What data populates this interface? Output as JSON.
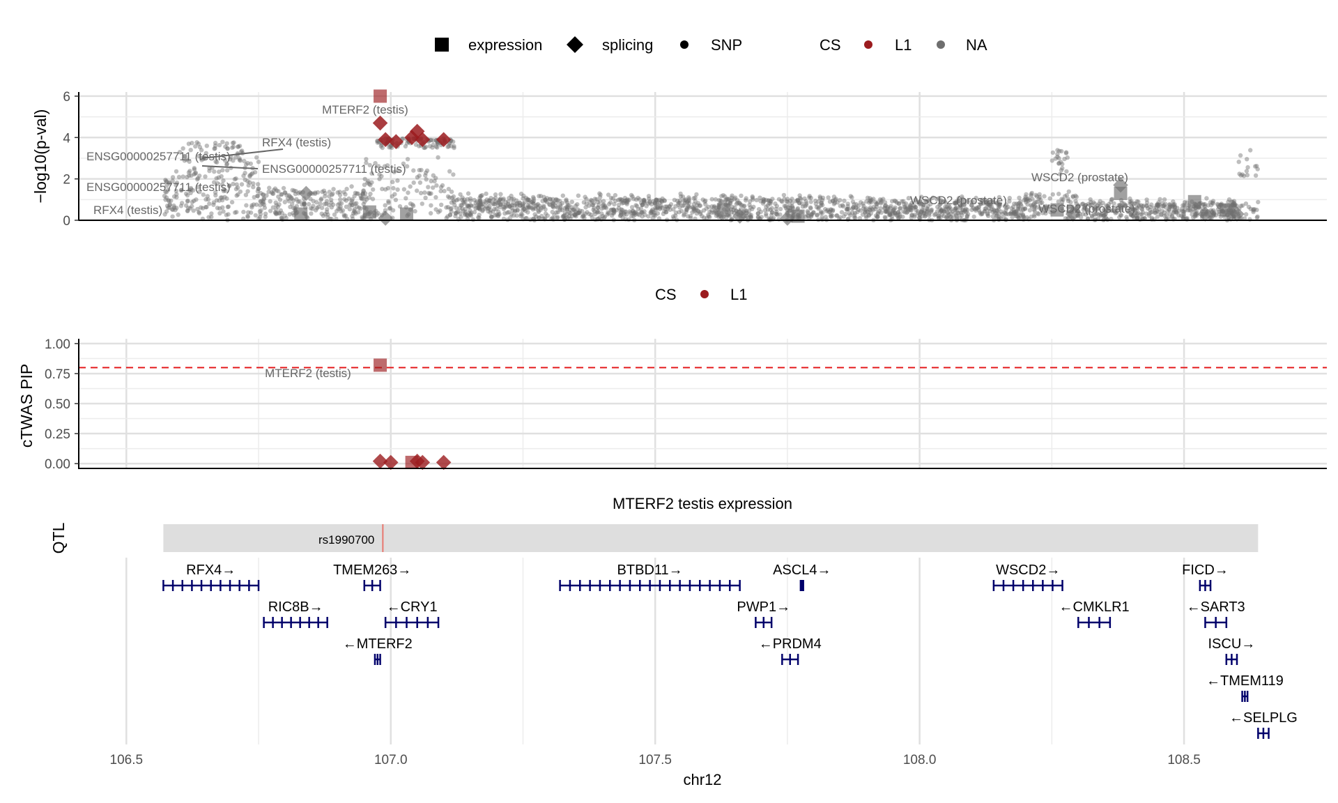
{
  "legend_top": {
    "shape_items": [
      {
        "shape": "square",
        "label": "expression"
      },
      {
        "shape": "diamond",
        "label": "splicing"
      },
      {
        "shape": "circle",
        "label": "SNP"
      }
    ],
    "cs_title": "CS",
    "cs_items": [
      {
        "label": "L1",
        "color": "#9b1b1e"
      },
      {
        "label": "NA",
        "color": "#6e6e6e"
      }
    ]
  },
  "legend_middle": {
    "cs_title": "CS",
    "cs_items": [
      {
        "label": "L1",
        "color": "#9b1b1e"
      }
    ]
  },
  "colors": {
    "cs_l1": "#9b1b1e",
    "cs_na": "#6e6e6e",
    "threshold": "#e41a1c",
    "gene": "#00006b",
    "qtl_band": "#dedede",
    "qtl_marker": "#e8776e"
  },
  "chart_data": [
    {
      "type": "scatter",
      "panel": "association",
      "ylabel": "−log10(p-val)",
      "ylim": [
        0,
        6.2
      ],
      "yticks": [
        0,
        2,
        4,
        6
      ],
      "xlim": [
        106.41,
        108.77
      ],
      "grid": true,
      "snp_cloud": {
        "x_range": [
          106.57,
          108.64
        ],
        "approx_y_range": [
          0,
          3.9
        ],
        "note": "several thousand SNPs, mostly below 2.5"
      },
      "gene_points": [
        {
          "x": 106.98,
          "y": 6.0,
          "shape": "square",
          "cs": "L1",
          "label": "MTERF2 (testis)"
        },
        {
          "x": 106.98,
          "y": 4.7,
          "shape": "diamond",
          "cs": "L1"
        },
        {
          "x": 106.99,
          "y": 3.9,
          "shape": "diamond",
          "cs": "L1"
        },
        {
          "x": 107.01,
          "y": 3.8,
          "shape": "diamond",
          "cs": "L1"
        },
        {
          "x": 107.04,
          "y": 4.0,
          "shape": "diamond",
          "cs": "L1"
        },
        {
          "x": 107.05,
          "y": 4.3,
          "shape": "diamond",
          "cs": "L1"
        },
        {
          "x": 107.06,
          "y": 3.9,
          "shape": "diamond",
          "cs": "L1"
        },
        {
          "x": 107.1,
          "y": 3.9,
          "shape": "diamond",
          "cs": "L1"
        },
        {
          "x": 106.84,
          "y": 1.3,
          "shape": "diamond",
          "cs": "NA"
        },
        {
          "x": 106.83,
          "y": 0.3,
          "shape": "square",
          "cs": "NA"
        },
        {
          "x": 106.96,
          "y": 0.4,
          "shape": "square",
          "cs": "NA"
        },
        {
          "x": 106.99,
          "y": 0.1,
          "shape": "diamond",
          "cs": "NA"
        },
        {
          "x": 107.03,
          "y": 0.3,
          "shape": "square",
          "cs": "NA"
        },
        {
          "x": 107.63,
          "y": 0.5,
          "shape": "square",
          "cs": "NA"
        },
        {
          "x": 107.66,
          "y": 0.2,
          "shape": "diamond",
          "cs": "NA"
        },
        {
          "x": 107.75,
          "y": 0.1,
          "shape": "diamond",
          "cs": "NA"
        },
        {
          "x": 107.77,
          "y": 0.2,
          "shape": "square",
          "cs": "NA"
        },
        {
          "x": 108.26,
          "y": 0.5,
          "shape": "square",
          "cs": "NA"
        },
        {
          "x": 108.29,
          "y": 0.3,
          "shape": "diamond",
          "cs": "NA"
        },
        {
          "x": 108.38,
          "y": 1.7,
          "shape": "diamond",
          "cs": "NA"
        },
        {
          "x": 108.38,
          "y": 1.3,
          "shape": "square",
          "cs": "NA"
        },
        {
          "x": 108.52,
          "y": 0.9,
          "shape": "square",
          "cs": "NA"
        },
        {
          "x": 108.54,
          "y": 0.3,
          "shape": "diamond",
          "cs": "NA"
        },
        {
          "x": 108.58,
          "y": 0.5,
          "shape": "square",
          "cs": "NA"
        },
        {
          "x": 108.6,
          "y": 0.3,
          "shape": "diamond",
          "cs": "NA"
        }
      ],
      "annotations": [
        "MTERF2 (testis)",
        "RFX4 (testis)",
        "ENSG00000257711 (testis)",
        "ENSG00000257711 (testis)",
        "ENSG00000257711 (testis)",
        "RFX4 (testis)",
        "WSCD2 (prostate)",
        "WSCD2 (prostate)",
        "WSCD2 (prostate)"
      ]
    },
    {
      "type": "scatter",
      "panel": "pip",
      "ylabel": "cTWAS PIP",
      "ylim": [
        -0.04,
        1.04
      ],
      "yticks": [
        0.0,
        0.25,
        0.5,
        0.75,
        1.0
      ],
      "ytick_labels": [
        "0.00",
        "0.25",
        "0.50",
        "0.75",
        "1.00"
      ],
      "threshold": 0.8,
      "xlim": [
        106.41,
        108.77
      ],
      "grid": true,
      "points": [
        {
          "x": 106.98,
          "y": 0.82,
          "shape": "square",
          "cs": "L1",
          "label": "MTERF2 (testis)"
        },
        {
          "x": 106.98,
          "y": 0.02,
          "shape": "diamond",
          "cs": "L1"
        },
        {
          "x": 107.0,
          "y": 0.01,
          "shape": "diamond",
          "cs": "L1"
        },
        {
          "x": 107.04,
          "y": 0.01,
          "shape": "square",
          "cs": "L1"
        },
        {
          "x": 107.05,
          "y": 0.02,
          "shape": "diamond",
          "cs": "L1"
        },
        {
          "x": 107.06,
          "y": 0.01,
          "shape": "diamond",
          "cs": "L1"
        },
        {
          "x": 107.1,
          "y": 0.01,
          "shape": "diamond",
          "cs": "L1"
        }
      ]
    },
    {
      "type": "table",
      "panel": "qtl_and_genes",
      "title": "MTERF2 testis expression",
      "qtl_label": "QTL",
      "qtl_range": [
        106.57,
        108.64
      ],
      "qtl_snp": {
        "name": "rs1990700",
        "x": 106.985
      },
      "xlabel": "chr12",
      "xlim": [
        106.41,
        108.77
      ],
      "xticks": [
        106.5,
        107.0,
        107.5,
        108.0,
        108.5
      ],
      "xtick_labels": [
        "106.5",
        "107.0",
        "107.5",
        "108.0",
        "108.5"
      ],
      "genes": [
        {
          "name": "RFX4",
          "strand": "+",
          "start": 106.57,
          "end": 106.75,
          "row": 0
        },
        {
          "name": "TMEM263",
          "strand": "+",
          "start": 106.95,
          "end": 106.98,
          "row": 0
        },
        {
          "name": "BTBD11",
          "strand": "+",
          "start": 107.32,
          "end": 107.66,
          "row": 0
        },
        {
          "name": "ASCL4",
          "strand": "+",
          "start": 107.775,
          "end": 107.78,
          "row": 0
        },
        {
          "name": "WSCD2",
          "strand": "+",
          "start": 108.14,
          "end": 108.27,
          "row": 0
        },
        {
          "name": "FICD",
          "strand": "+",
          "start": 108.53,
          "end": 108.55,
          "row": 0
        },
        {
          "name": "RIC8B",
          "strand": "+",
          "start": 106.76,
          "end": 106.88,
          "row": 1
        },
        {
          "name": "CRY1",
          "strand": "-",
          "start": 106.99,
          "end": 107.09,
          "row": 1
        },
        {
          "name": "PWP1",
          "strand": "+",
          "start": 107.69,
          "end": 107.72,
          "row": 1
        },
        {
          "name": "CMKLR1",
          "strand": "-",
          "start": 108.3,
          "end": 108.36,
          "row": 1
        },
        {
          "name": "SART3",
          "strand": "-",
          "start": 108.54,
          "end": 108.58,
          "row": 1
        },
        {
          "name": "MTERF2",
          "strand": "-",
          "start": 106.97,
          "end": 106.98,
          "row": 2
        },
        {
          "name": "PRDM4",
          "strand": "-",
          "start": 107.74,
          "end": 107.77,
          "row": 2
        },
        {
          "name": "ISCU",
          "strand": "+",
          "start": 108.58,
          "end": 108.6,
          "row": 2
        },
        {
          "name": "TMEM119",
          "strand": "-",
          "start": 108.61,
          "end": 108.62,
          "row": 3
        },
        {
          "name": "SELPLG",
          "strand": "-",
          "start": 108.64,
          "end": 108.66,
          "row": 4
        }
      ]
    }
  ]
}
